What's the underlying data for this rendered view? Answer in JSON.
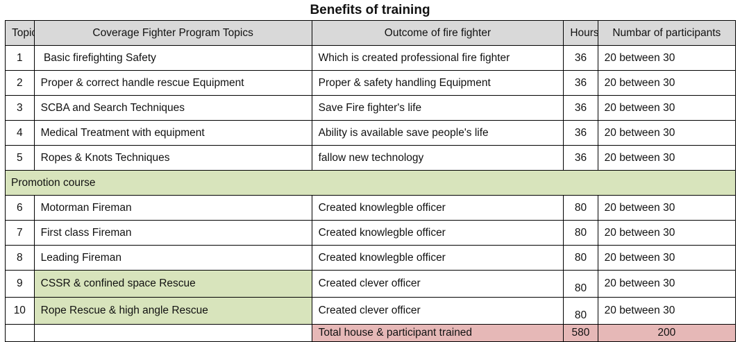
{
  "title": "Benefits of training",
  "headers": {
    "topic": "Topic",
    "program": "Coverage Fighter Program Topics",
    "outcome": "Outcome of fire fighter",
    "hours": "Hours",
    "participants": "Numbar of participants"
  },
  "rows_a": [
    {
      "num": "1",
      "topic": " Basic firefighting Safety",
      "outcome": "Which is created professional fire fighter",
      "hours": "36",
      "participants": "20 between 30"
    },
    {
      "num": "2",
      "topic": "Proper & correct handle rescue Equipment",
      "outcome": "Proper & safety handling Equipment",
      "hours": "36",
      "participants": "20 between 30"
    },
    {
      "num": "3",
      "topic": "SCBA and Search Techniques",
      "outcome": "Save Fire fighter's life",
      "hours": "36",
      "participants": "20 between 30"
    },
    {
      "num": "4",
      "topic": "Medical Treatment with equipment",
      "outcome": "Ability is available save people's life",
      "hours": "36",
      "participants": "20 between 30"
    },
    {
      "num": "5",
      "topic": "Ropes & Knots Techniques",
      "outcome": "fallow new technology",
      "hours": "36",
      "participants": "20 between 30"
    }
  ],
  "section_label": "Promotion course",
  "rows_b": [
    {
      "num": "6",
      "topic": "Motorman Fireman",
      "outcome": "Created knowlegble officer",
      "hours": "80",
      "participants": "20 between 30"
    },
    {
      "num": "7",
      "topic": "First class Fireman",
      "outcome": "Created knowlegble officer",
      "hours": "80",
      "participants": "20 between 30"
    },
    {
      "num": "8",
      "topic": "Leading Fireman",
      "outcome": "Created knowlegble officer",
      "hours": "80",
      "participants": "20 between 30"
    },
    {
      "num": "9",
      "topic": "CSSR & confined space Rescue",
      "outcome": "Created clever officer",
      "hours": "80",
      "participants": "20 between 30"
    },
    {
      "num": "10",
      "topic": "Rope Rescue & high angle Rescue",
      "outcome": "Created clever officer",
      "hours": "80",
      "participants": "20 between 30"
    }
  ],
  "total": {
    "label": "Total house & participant trained",
    "hours": "580",
    "participants": "200"
  },
  "colors": {
    "header_bg": "#d9d9d9",
    "section_bg": "#d8e4bc",
    "total_bg": "#e6b8b7"
  }
}
